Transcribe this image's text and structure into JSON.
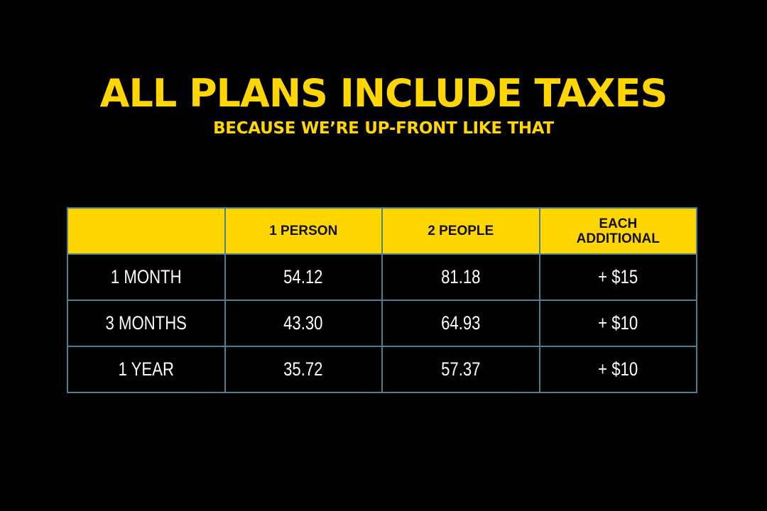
{
  "header": {
    "title": "ALL PLANS INCLUDE TAXES",
    "subtitle": "BECAUSE WE’RE UP-FRONT LIKE THAT"
  },
  "table": {
    "columns": [
      "",
      "1 PERSON",
      "2 PEOPLE",
      "EACH ADDITIONAL"
    ],
    "rows": [
      {
        "plan": "1 MONTH",
        "one_person": "54.12",
        "two_people": "81.18",
        "each_additional": "+ $15"
      },
      {
        "plan": "3 MONTHS",
        "one_person": "43.30",
        "two_people": "64.93",
        "each_additional": "+ $10"
      },
      {
        "plan": "1 YEAR",
        "one_person": "35.72",
        "two_people": "57.37",
        "each_additional": "+ $10"
      }
    ]
  },
  "colors": {
    "accent": "#FFD600",
    "background": "#000000",
    "border": "#4E7F8C"
  }
}
